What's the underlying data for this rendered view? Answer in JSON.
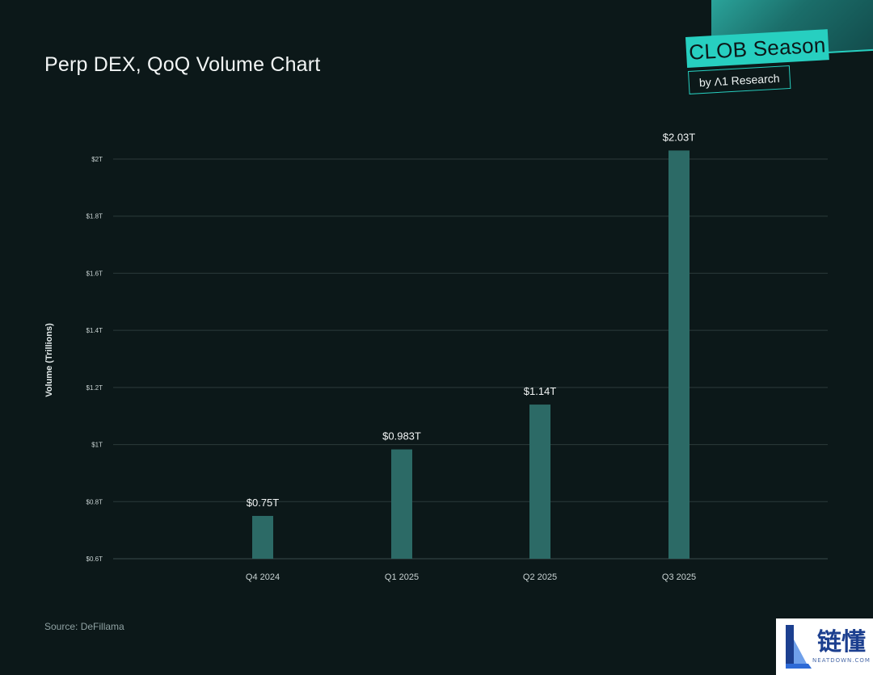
{
  "page": {
    "title": "Perp DEX, QoQ Volume Chart",
    "source": "Source: DeFillama"
  },
  "brand": {
    "tag": "CLOB Season",
    "sub": "by Λ1 Research",
    "accent": "#27cfc0"
  },
  "watermark": {
    "text_cn": "链懂",
    "text_en": "NEATDOWN.COM"
  },
  "colors": {
    "background": "#0c1819",
    "bar": "#2c6a66",
    "grid": "#2b3a3b"
  },
  "chart_data": {
    "type": "bar",
    "categories": [
      "Q4 2024",
      "Q1 2025",
      "Q2 2025",
      "Q3 2025"
    ],
    "values": [
      0.75,
      0.983,
      1.14,
      2.03
    ],
    "value_labels": [
      "$0.75T",
      "$0.983T",
      "$1.14T",
      "$2.03T"
    ],
    "ylabel": "Volume (Trillions)",
    "ylim": [
      0.6,
      2.0
    ],
    "yticks": [
      0.6,
      0.8,
      1.0,
      1.2,
      1.4,
      1.6,
      1.8,
      2.0
    ],
    "ytick_labels": [
      "$0.6T",
      "$0.8T",
      "$1T",
      "$1.2T",
      "$1.4T",
      "$1.6T",
      "$1.8T",
      "$2T"
    ],
    "grid": true
  }
}
